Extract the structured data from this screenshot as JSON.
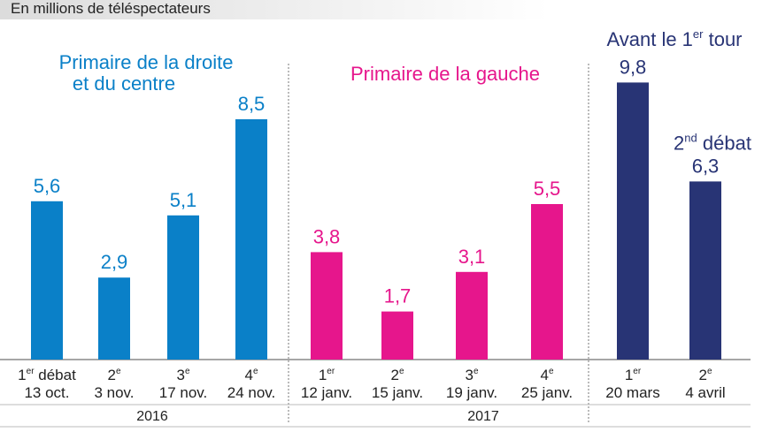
{
  "subtitle": "En millions de téléspectateurs",
  "colors": {
    "droite": "#0a80c8",
    "gauche": "#e6168c",
    "premier_tour": "#283475",
    "axis": "#888888"
  },
  "chart_data": {
    "type": "bar",
    "title": "",
    "xlabel": "",
    "ylabel": "",
    "ylim": [
      0,
      10
    ],
    "grid": false,
    "groups": [
      {
        "name": "Primaire de la droite et du centre",
        "title_lines": [
          "Primaire de la droite",
          "et du centre"
        ],
        "color": "#0a80c8",
        "bars": [
          {
            "num": "1",
            "sup": "er",
            "rest": " débat",
            "date": "13 oct.",
            "value": 5.6,
            "label": "5,6"
          },
          {
            "num": "2",
            "sup": "e",
            "rest": "",
            "date": "3 nov.",
            "value": 2.9,
            "label": "2,9"
          },
          {
            "num": "3",
            "sup": "e",
            "rest": "",
            "date": "17 nov.",
            "value": 5.1,
            "label": "5,1"
          },
          {
            "num": "4",
            "sup": "e",
            "rest": "",
            "date": "24 nov.",
            "value": 8.5,
            "label": "8,5"
          }
        ]
      },
      {
        "name": "Primaire de la gauche",
        "title_lines": [
          "Primaire de la gauche"
        ],
        "color": "#e6168c",
        "bars": [
          {
            "num": "1",
            "sup": "er",
            "rest": "",
            "date": "12 janv.",
            "value": 3.8,
            "label": "3,8"
          },
          {
            "num": "2",
            "sup": "e",
            "rest": "",
            "date": "15 janv.",
            "value": 1.7,
            "label": "1,7"
          },
          {
            "num": "3",
            "sup": "e",
            "rest": "",
            "date": "19 janv.",
            "value": 3.1,
            "label": "3,1"
          },
          {
            "num": "4",
            "sup": "e",
            "rest": "",
            "date": "25 janv.",
            "value": 5.5,
            "label": "5,5"
          }
        ]
      },
      {
        "name": "Avant le 1er tour",
        "title_parts": {
          "pre": "Avant le 1",
          "sup": "er",
          "post": " tour"
        },
        "color": "#283475",
        "bars": [
          {
            "num": "1",
            "sup": "er",
            "rest": "",
            "date": "20 mars",
            "value": 9.8,
            "label": "9,8"
          },
          {
            "num": "2",
            "sup": "e",
            "rest": "",
            "date": "4 avril",
            "value": 6.3,
            "label": "6,3",
            "annotation": {
              "pre": "2",
              "sup": "nd",
              "post": " débat"
            }
          }
        ]
      }
    ],
    "years": [
      "2016",
      "2017"
    ]
  }
}
